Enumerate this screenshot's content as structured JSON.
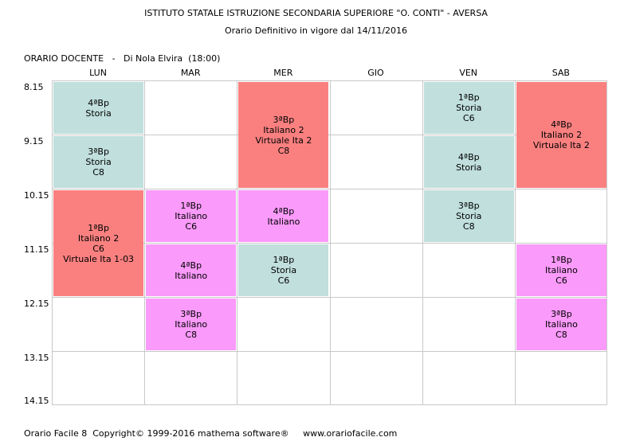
{
  "header": {
    "title": "ISTITUTO STATALE ISTRUZIONE SECONDARIA SUPERIORE \"O. CONTI\" - AVERSA",
    "subtitle": "Orario Definitivo in vigore dal 14/11/2016",
    "docente": "ORARIO DOCENTE   -   Di Nola Elvira  (18:00)"
  },
  "days": [
    "LUN",
    "MAR",
    "MER",
    "GIO",
    "VEN",
    "SAB"
  ],
  "times": [
    "8.15",
    "9.15",
    "10.15",
    "11.15",
    "12.15",
    "13.15",
    "14.15"
  ],
  "colors": {
    "storia": "#c0dfdd",
    "italiano": "#fa9afa",
    "italiano2": "#fa8080",
    "grid": "#c8c8c8"
  },
  "lessons": [
    {
      "day": 0,
      "slot": 0,
      "span": 1,
      "kind": "storia",
      "lines": [
        "4ªBp",
        "Storia"
      ]
    },
    {
      "day": 0,
      "slot": 1,
      "span": 1,
      "kind": "storia",
      "lines": [
        "3ªBp",
        "Storia",
        "C8"
      ]
    },
    {
      "day": 0,
      "slot": 2,
      "span": 2,
      "kind": "italiano2",
      "lines": [
        "1ªBp",
        "Italiano 2",
        "C6",
        "Virtuale Ita 1-03"
      ]
    },
    {
      "day": 1,
      "slot": 2,
      "span": 1,
      "kind": "italiano",
      "lines": [
        "1ªBp",
        "Italiano",
        "C6"
      ]
    },
    {
      "day": 1,
      "slot": 3,
      "span": 1,
      "kind": "italiano",
      "lines": [
        "4ªBp",
        "Italiano"
      ]
    },
    {
      "day": 1,
      "slot": 4,
      "span": 1,
      "kind": "italiano",
      "lines": [
        "3ªBp",
        "Italiano",
        "C8"
      ]
    },
    {
      "day": 2,
      "slot": 0,
      "span": 2,
      "kind": "italiano2",
      "lines": [
        "3ªBp",
        "Italiano 2",
        "Virtuale Ita 2",
        "C8"
      ]
    },
    {
      "day": 2,
      "slot": 2,
      "span": 1,
      "kind": "italiano",
      "lines": [
        "4ªBp",
        "Italiano"
      ]
    },
    {
      "day": 2,
      "slot": 3,
      "span": 1,
      "kind": "storia",
      "lines": [
        "1ªBp",
        "Storia",
        "C6"
      ]
    },
    {
      "day": 4,
      "slot": 0,
      "span": 1,
      "kind": "storia",
      "lines": [
        "1ªBp",
        "Storia",
        "C6"
      ]
    },
    {
      "day": 4,
      "slot": 1,
      "span": 1,
      "kind": "storia",
      "lines": [
        "4ªBp",
        "Storia"
      ]
    },
    {
      "day": 4,
      "slot": 2,
      "span": 1,
      "kind": "storia",
      "lines": [
        "3ªBp",
        "Storia",
        "C8"
      ]
    },
    {
      "day": 5,
      "slot": 0,
      "span": 2,
      "kind": "italiano2",
      "lines": [
        "4ªBp",
        "Italiano 2",
        "Virtuale Ita 2"
      ]
    },
    {
      "day": 5,
      "slot": 3,
      "span": 1,
      "kind": "italiano",
      "lines": [
        "1ªBp",
        "Italiano",
        "C6"
      ]
    },
    {
      "day": 5,
      "slot": 4,
      "span": 1,
      "kind": "italiano",
      "lines": [
        "3ªBp",
        "Italiano",
        "C8"
      ]
    }
  ],
  "footer": {
    "text": "Orario Facile 8  Copyright© 1999-2016 mathema software®     www.orariofacile.com"
  }
}
